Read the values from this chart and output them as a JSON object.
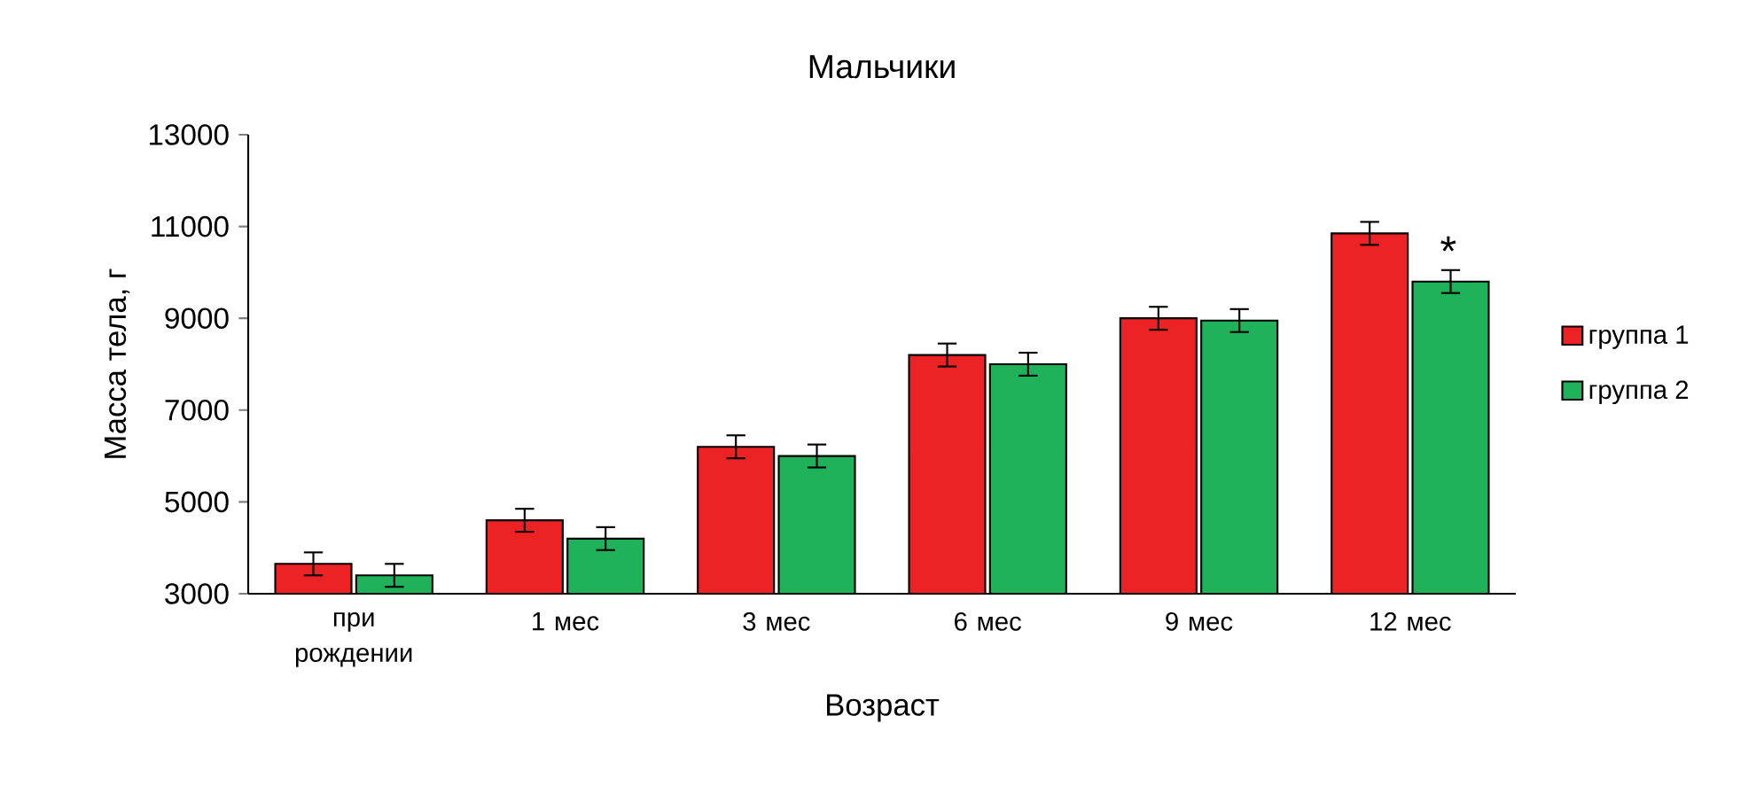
{
  "chart_data": {
    "type": "bar",
    "title": "Мальчики",
    "xlabel": "Возраст",
    "ylabel": "Масса тела, г",
    "categories": [
      "при рождении",
      "1 мес",
      "3 мес",
      "6 мес",
      "9 мес",
      "12 мес"
    ],
    "series": [
      {
        "name": "группа 1",
        "color": "#ed2224",
        "values": [
          3650,
          4600,
          6200,
          8200,
          9000,
          10850
        ],
        "errors": [
          250,
          250,
          250,
          250,
          250,
          250
        ]
      },
      {
        "name": "группа 2",
        "color": "#20b25a",
        "values": [
          3400,
          4200,
          6000,
          8000,
          8950,
          9800
        ],
        "errors": [
          250,
          250,
          250,
          250,
          250,
          250
        ]
      }
    ],
    "ylim": [
      3000,
      13000
    ],
    "yticks": [
      3000,
      5000,
      7000,
      9000,
      11000,
      13000
    ],
    "legend": "right",
    "grid": false,
    "annotations": [
      "*"
    ]
  }
}
